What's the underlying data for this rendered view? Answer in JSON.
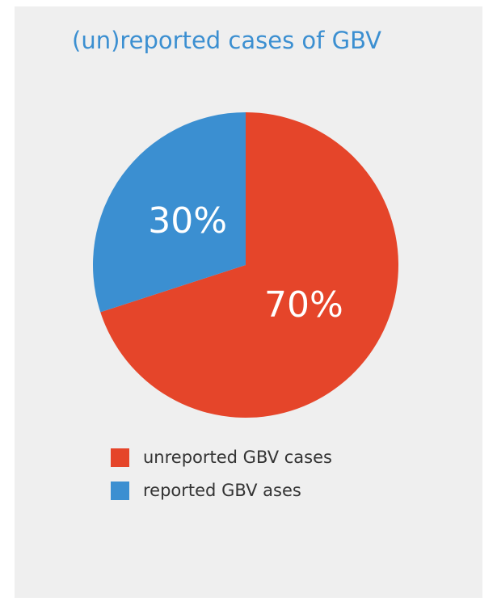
{
  "chart_data": {
    "type": "pie",
    "title": "(un)reported cases of GBV",
    "categories": [
      "unreported GBV cases",
      "reported GBV ases"
    ],
    "values": [
      70,
      30
    ],
    "value_labels": [
      "70%",
      "30%"
    ],
    "colors": [
      "#e5452a",
      "#3b8fd1"
    ]
  }
}
